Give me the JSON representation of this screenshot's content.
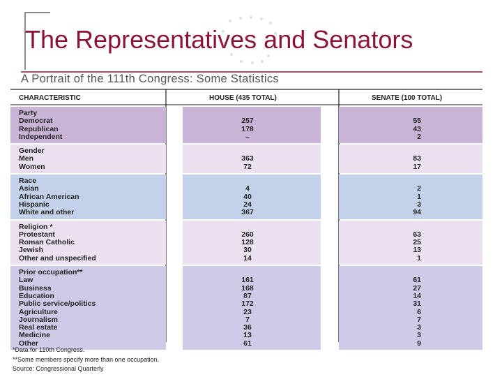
{
  "header": {
    "title": "The Representatives and Senators",
    "subtitle": "A Portrait of the 111th Congress: Some Statistics"
  },
  "table": {
    "columns": [
      "CHARACTERISTIC",
      "HOUSE (435 TOTAL)",
      "SENATE (100 TOTAL)"
    ],
    "sections": [
      {
        "heading": "Party",
        "rows": [
          [
            "Democrat",
            "257",
            "55"
          ],
          [
            "Republican",
            "178",
            "43"
          ],
          [
            "Independent",
            "–",
            "2"
          ]
        ]
      },
      {
        "heading": "Gender",
        "rows": [
          [
            "Men",
            "363",
            "83"
          ],
          [
            "Women",
            "72",
            "17"
          ]
        ]
      },
      {
        "heading": "Race",
        "rows": [
          [
            "Asian",
            "4",
            "2"
          ],
          [
            "African American",
            "40",
            "1"
          ],
          [
            "Hispanic",
            "24",
            "3"
          ],
          [
            "White and other",
            "367",
            "94"
          ]
        ]
      },
      {
        "heading": "Religion *",
        "rows": [
          [
            "Protestant",
            "260",
            "63"
          ],
          [
            "Roman Catholic",
            "128",
            "25"
          ],
          [
            "Jewish",
            "30",
            "13"
          ],
          [
            "Other and unspecified",
            "14",
            "1"
          ]
        ]
      },
      {
        "heading": "Prior occupation**",
        "rows": [
          [
            "Law",
            "161",
            "61"
          ],
          [
            "Business",
            "168",
            "27"
          ],
          [
            "Education",
            "87",
            "14"
          ],
          [
            "Public service/politics",
            "172",
            "31"
          ],
          [
            "Agriculture",
            "23",
            "6"
          ],
          [
            "Journalism",
            "7",
            "7"
          ],
          [
            "Real estate",
            "36",
            "3"
          ],
          [
            "Medicine",
            "13",
            "3"
          ],
          [
            "Other",
            "61",
            "9"
          ]
        ]
      }
    ]
  },
  "footnotes": [
    "*Data for 110th Congress.",
    "**Some members specify more than one occupation.",
    "Source: Congressional Quarterly"
  ]
}
